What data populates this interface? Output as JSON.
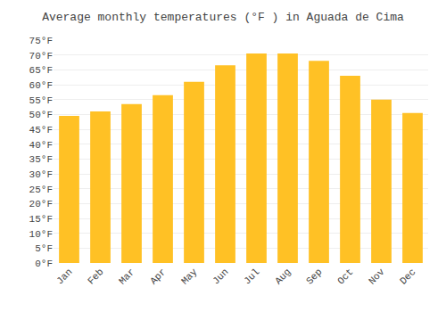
{
  "chart_data": {
    "type": "bar",
    "title": "Average monthly temperatures (°F ) in Aguada de Cima",
    "categories": [
      "Jan",
      "Feb",
      "Mar",
      "Apr",
      "May",
      "Jun",
      "Jul",
      "Aug",
      "Sep",
      "Oct",
      "Nov",
      "Dec"
    ],
    "values": [
      49.5,
      51.0,
      53.5,
      56.5,
      61.0,
      66.5,
      70.5,
      70.5,
      68.0,
      63.0,
      55.0,
      50.5
    ],
    "color": "#FFC125",
    "ylim": [
      0,
      75
    ],
    "yticks": [
      {
        "value": 0,
        "label": "0°F"
      },
      {
        "value": 5,
        "label": "5°F"
      },
      {
        "value": 10,
        "label": "10°F"
      },
      {
        "value": 15,
        "label": "15°F"
      },
      {
        "value": 20,
        "label": "20°F"
      },
      {
        "value": 25,
        "label": "25°F"
      },
      {
        "value": 30,
        "label": "30°F"
      },
      {
        "value": 35,
        "label": "35°F"
      },
      {
        "value": 40,
        "label": "40°F"
      },
      {
        "value": 45,
        "label": "45°F"
      },
      {
        "value": 50,
        "label": "50°F"
      },
      {
        "value": 55,
        "label": "55°F"
      },
      {
        "value": 60,
        "label": "60°F"
      },
      {
        "value": 65,
        "label": "65°F"
      },
      {
        "value": 70,
        "label": "70°F"
      },
      {
        "value": 75,
        "label": "75°F"
      }
    ],
    "grid": true
  }
}
